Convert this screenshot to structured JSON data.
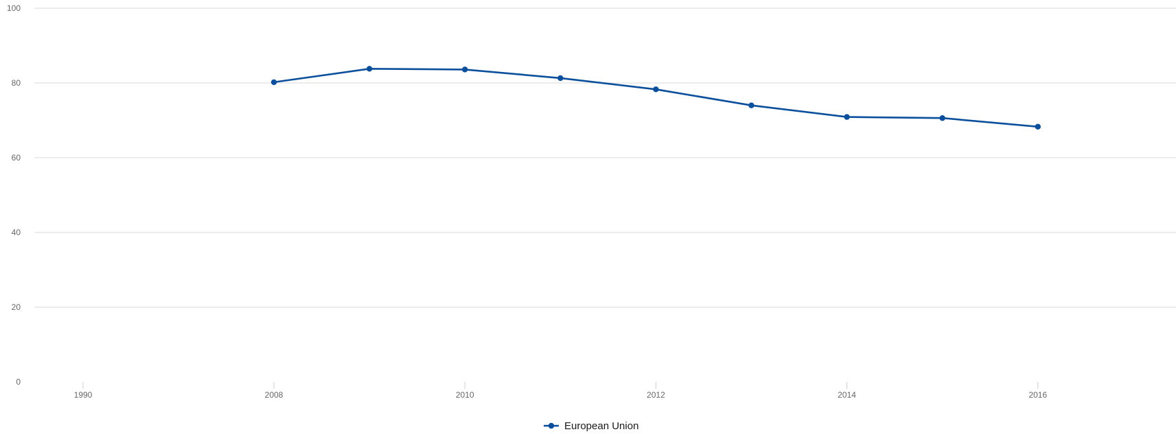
{
  "chart_data": {
    "type": "line",
    "title": "",
    "xlabel": "",
    "ylabel": "",
    "ylim": [
      0,
      100
    ],
    "y_ticks": [
      "0",
      "20",
      "40",
      "60",
      "80",
      "100"
    ],
    "x_ticks": [
      "1990",
      "2008",
      "2010",
      "2012",
      "2014",
      "2016"
    ],
    "grid": true,
    "legend_position": "bottom-center",
    "series": [
      {
        "name": "European Union",
        "color": "#0b4f9c",
        "x": [
          2008,
          2009,
          2010,
          2011,
          2012,
          2013,
          2014,
          2015,
          2016
        ],
        "values": [
          80.2,
          83.8,
          83.6,
          81.3,
          78.3,
          74.0,
          70.9,
          70.6,
          68.3
        ]
      }
    ]
  }
}
